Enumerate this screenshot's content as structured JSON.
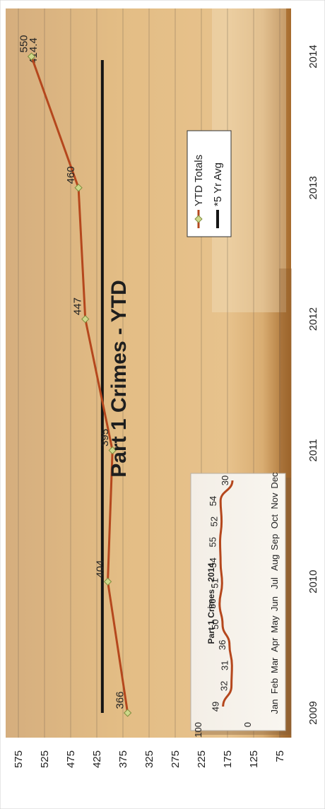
{
  "chart_data": [
    {
      "type": "line",
      "title": "Part 1 Crimes - YTD",
      "categories": [
        "2009",
        "2010",
        "2011",
        "2012",
        "2013",
        "2014"
      ],
      "y_ticks": [
        75,
        125,
        175,
        225,
        275,
        325,
        375,
        425,
        475,
        525,
        575
      ],
      "ylim": [
        75,
        575
      ],
      "grid": true,
      "legend_position": "top-right",
      "series": [
        {
          "name": "YTD Totals",
          "values": [
            366,
            404,
            395,
            447,
            460,
            550
          ],
          "labels": [
            "366",
            "404",
            "395",
            "447",
            "460",
            "550"
          ],
          "color": "#b5471d"
        },
        {
          "name": "*5 Yr Avg",
          "values": [
            414.4,
            414.4,
            414.4,
            414.4,
            414.4,
            414.4
          ],
          "labels": [
            "414.4"
          ],
          "color": "#151515"
        }
      ]
    },
    {
      "type": "line",
      "title": "Part 1 Crimes - 2014",
      "categories": [
        "Jan",
        "Feb",
        "Mar",
        "Apr",
        "May",
        "Jun",
        "Jul",
        "Aug",
        "Sep",
        "Oct",
        "Nov",
        "Dec"
      ],
      "y_ticks": [
        0,
        100
      ],
      "ylim": [
        0,
        100
      ],
      "series": [
        {
          "values": [
            49,
            32,
            31,
            36,
            50,
            56,
            51,
            54,
            55,
            52,
            54,
            30
          ],
          "labels": [
            "49",
            "32",
            "31",
            "36",
            "50",
            "56",
            "51",
            "54",
            "55",
            "52",
            "54",
            "30"
          ],
          "color": "#b5471d"
        }
      ]
    }
  ]
}
